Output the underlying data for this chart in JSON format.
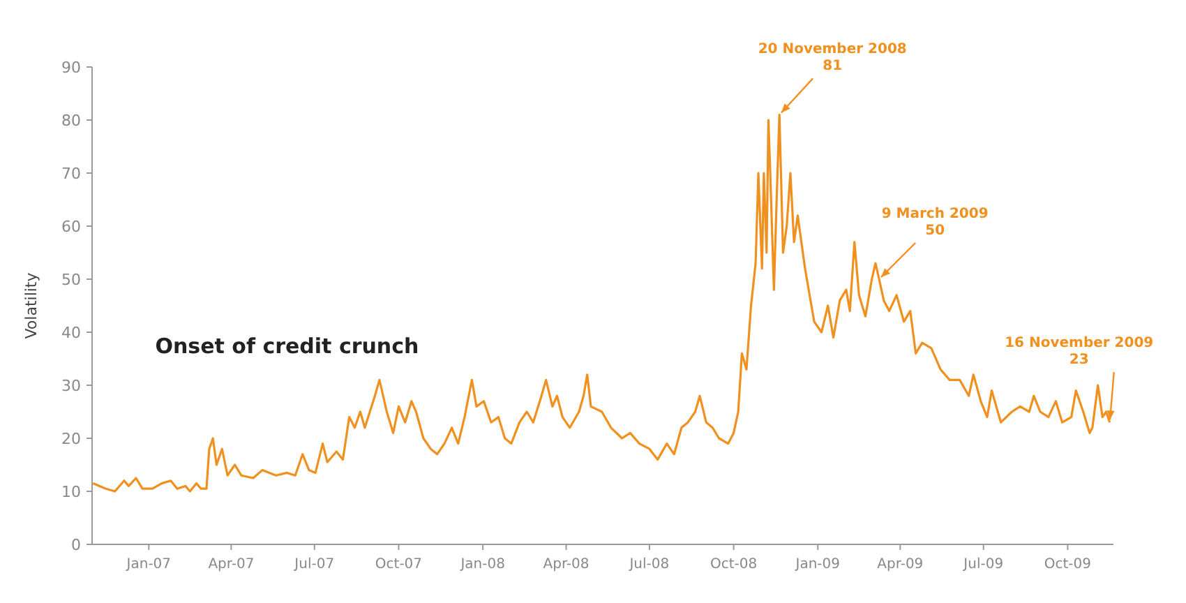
{
  "chart_data": {
    "type": "line",
    "ylabel": "Volatility",
    "xlim": [
      "2006-10-31",
      "2009-11-20"
    ],
    "ylim": [
      0,
      90
    ],
    "yticks": [
      0,
      10,
      20,
      30,
      40,
      50,
      60,
      70,
      80,
      90
    ],
    "xticks": [
      {
        "value": "2007-01-01",
        "label": "Jan-07"
      },
      {
        "value": "2007-04-01",
        "label": "Apr-07"
      },
      {
        "value": "2007-07-01",
        "label": "Jul-07"
      },
      {
        "value": "2007-10-01",
        "label": "Oct-07"
      },
      {
        "value": "2008-01-01",
        "label": "Jan-08"
      },
      {
        "value": "2008-04-01",
        "label": "Apr-08"
      },
      {
        "value": "2008-07-01",
        "label": "Jul-08"
      },
      {
        "value": "2008-10-01",
        "label": "Oct-08"
      },
      {
        "value": "2009-01-01",
        "label": "Jan-09"
      },
      {
        "value": "2009-04-01",
        "label": "Apr-09"
      },
      {
        "value": "2009-07-01",
        "label": "Jul-09"
      },
      {
        "value": "2009-10-01",
        "label": "Oct-09"
      }
    ],
    "grid": false,
    "marker": "none",
    "line_style": "solid",
    "x": [
      "2006-11-01",
      "2006-11-15",
      "2006-11-25",
      "2006-12-05",
      "2006-12-10",
      "2006-12-18",
      "2006-12-25",
      "2007-01-05",
      "2007-01-15",
      "2007-01-25",
      "2007-02-01",
      "2007-02-10",
      "2007-02-15",
      "2007-02-22",
      "2007-02-27",
      "2007-03-05",
      "2007-03-08",
      "2007-03-12",
      "2007-03-16",
      "2007-03-22",
      "2007-03-28",
      "2007-04-05",
      "2007-04-12",
      "2007-04-25",
      "2007-05-05",
      "2007-05-20",
      "2007-06-01",
      "2007-06-10",
      "2007-06-18",
      "2007-06-25",
      "2007-07-02",
      "2007-07-10",
      "2007-07-15",
      "2007-07-25",
      "2007-08-01",
      "2007-08-08",
      "2007-08-14",
      "2007-08-20",
      "2007-08-25",
      "2007-09-05",
      "2007-09-10",
      "2007-09-18",
      "2007-09-25",
      "2007-10-01",
      "2007-10-08",
      "2007-10-15",
      "2007-10-20",
      "2007-10-28",
      "2007-11-05",
      "2007-11-12",
      "2007-11-20",
      "2007-11-28",
      "2007-12-05",
      "2007-12-12",
      "2007-12-20",
      "2007-12-25",
      "2008-01-02",
      "2008-01-10",
      "2008-01-18",
      "2008-01-25",
      "2008-02-01",
      "2008-02-10",
      "2008-02-18",
      "2008-02-25",
      "2008-03-05",
      "2008-03-10",
      "2008-03-17",
      "2008-03-22",
      "2008-03-28",
      "2008-04-05",
      "2008-04-15",
      "2008-04-20",
      "2008-04-24",
      "2008-04-28",
      "2008-05-10",
      "2008-05-20",
      "2008-06-01",
      "2008-06-10",
      "2008-06-20",
      "2008-07-01",
      "2008-07-10",
      "2008-07-20",
      "2008-07-28",
      "2008-08-05",
      "2008-08-12",
      "2008-08-20",
      "2008-08-25",
      "2008-09-01",
      "2008-09-08",
      "2008-09-15",
      "2008-09-25",
      "2008-10-01",
      "2008-10-06",
      "2008-10-10",
      "2008-10-15",
      "2008-10-20",
      "2008-10-25",
      "2008-10-28",
      "2008-11-01",
      "2008-11-03",
      "2008-11-06",
      "2008-11-08",
      "2008-11-10",
      "2008-11-14",
      "2008-11-17",
      "2008-11-20",
      "2008-11-24",
      "2008-11-28",
      "2008-12-02",
      "2008-12-06",
      "2008-12-10",
      "2008-12-18",
      "2008-12-28",
      "2009-01-05",
      "2009-01-12",
      "2009-01-18",
      "2009-01-25",
      "2009-02-01",
      "2009-02-05",
      "2009-02-10",
      "2009-02-15",
      "2009-02-22",
      "2009-03-01",
      "2009-03-05",
      "2009-03-09",
      "2009-03-14",
      "2009-03-20",
      "2009-03-28",
      "2009-04-05",
      "2009-04-12",
      "2009-04-18",
      "2009-04-25",
      "2009-05-05",
      "2009-05-15",
      "2009-05-25",
      "2009-06-05",
      "2009-06-15",
      "2009-06-20",
      "2009-06-28",
      "2009-07-05",
      "2009-07-10",
      "2009-07-20",
      "2009-08-01",
      "2009-08-10",
      "2009-08-20",
      "2009-08-25",
      "2009-09-01",
      "2009-09-10",
      "2009-09-18",
      "2009-09-25",
      "2009-10-05",
      "2009-10-10",
      "2009-10-18",
      "2009-10-25",
      "2009-10-28",
      "2009-11-03",
      "2009-11-08",
      "2009-11-12",
      "2009-11-16"
    ],
    "series": [
      {
        "color": "#f0901e",
        "values": [
          11.5,
          10.5,
          10,
          12,
          11,
          12.5,
          10.5,
          10.5,
          11.5,
          12,
          10.5,
          11,
          10,
          11.5,
          10.5,
          10.5,
          18,
          20,
          15,
          18,
          13,
          15,
          13,
          12.5,
          14,
          13,
          13.5,
          13,
          17,
          14,
          13.5,
          19,
          15.5,
          17.5,
          16,
          24,
          22,
          25,
          22,
          28,
          31,
          25,
          21,
          26,
          23,
          27,
          25,
          20,
          18,
          17,
          19,
          22,
          19,
          24,
          31,
          26,
          27,
          23,
          24,
          20,
          19,
          23,
          25,
          23,
          28,
          31,
          26,
          28,
          24,
          22,
          25,
          28,
          32,
          26,
          25,
          22,
          20,
          21,
          19,
          18,
          16,
          19,
          17,
          22,
          23,
          25,
          28,
          23,
          22,
          20,
          19,
          21,
          25,
          36,
          33,
          45,
          53,
          70,
          52,
          70,
          55,
          80,
          70,
          48,
          65,
          81,
          55,
          60,
          70,
          57,
          62,
          52,
          42,
          40,
          45,
          39,
          46,
          48,
          44,
          57,
          47,
          43,
          50,
          53,
          50,
          46,
          44,
          47,
          42,
          44,
          36,
          38,
          37,
          33,
          31,
          31,
          28,
          32,
          27,
          24,
          29,
          23,
          25,
          26,
          25,
          28,
          25,
          24,
          27,
          23,
          24,
          29,
          25,
          21,
          22,
          30,
          24,
          25,
          23
        ]
      }
    ],
    "annotations": [
      "Onset of credit crunch",
      {
        "text": "20 November 2008\n81",
        "x": "2008-11-20",
        "y": 81
      },
      {
        "text": "9 March 2009\n50",
        "x": "2009-03-09",
        "y": 50
      },
      {
        "text": "16 November 2009\n23",
        "x": "2009-11-16",
        "y": 23
      }
    ]
  }
}
